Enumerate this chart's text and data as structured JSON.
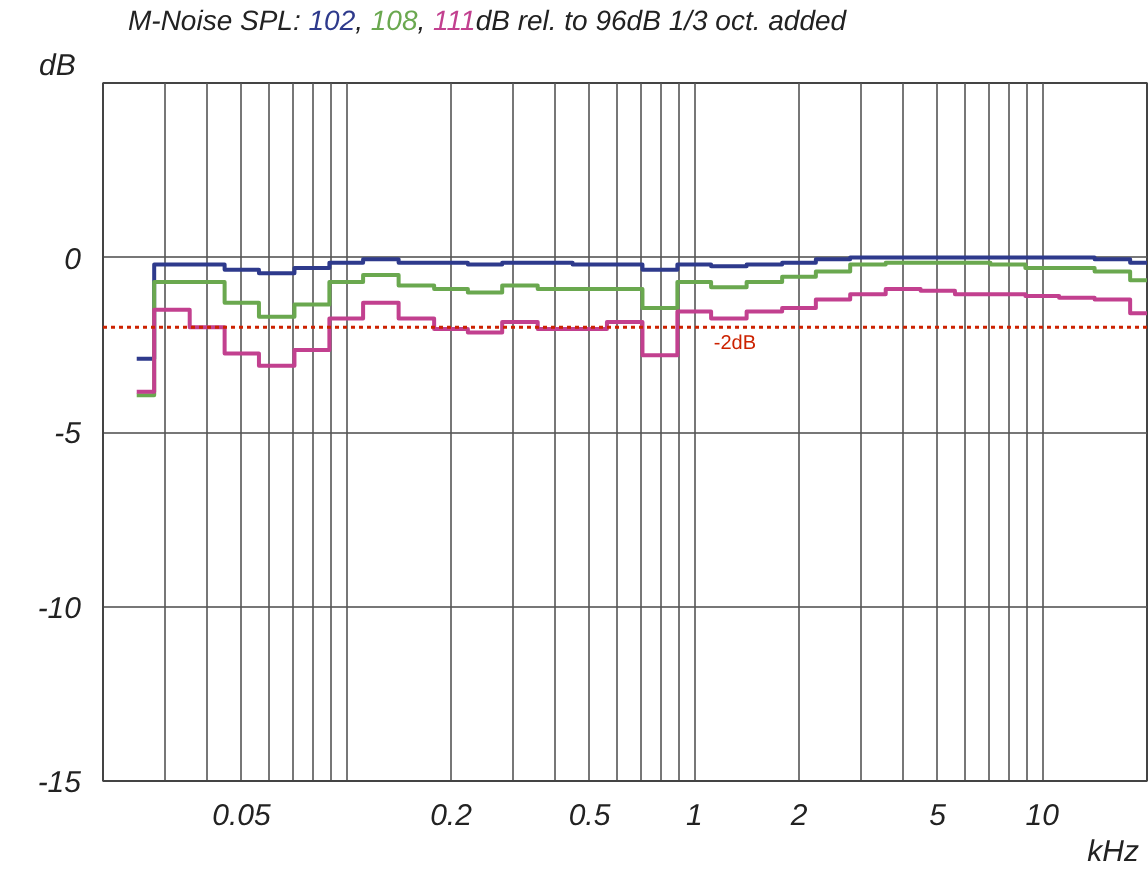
{
  "chart_data": {
    "type": "step",
    "title": "M-Noise SPL:",
    "annotations": [
      ", ",
      ", ",
      "dB rel. to 96dB 1/3 oct. added"
    ],
    "ylabel": "dB",
    "xlabel": "kHz",
    "log": "x",
    "xlim": [
      0.02,
      20
    ],
    "xticks": [
      {
        "value": 0.03,
        "label": null
      },
      {
        "value": 0.04,
        "label": null
      },
      0.05,
      {
        "value": 0.06,
        "label": null
      },
      {
        "value": 0.07,
        "label": null
      },
      {
        "value": 0.08,
        "label": null
      },
      {
        "value": 0.09,
        "label": null
      },
      {
        "value": 0.1,
        "label": null
      },
      0.2,
      {
        "value": 0.3,
        "label": null
      },
      {
        "value": 0.4,
        "label": null
      },
      0.5,
      {
        "value": 0.6,
        "label": null
      },
      {
        "value": 0.7,
        "label": null
      },
      {
        "value": 0.8,
        "label": null
      },
      {
        "value": 0.9,
        "label": null
      },
      1,
      2,
      {
        "value": 3,
        "label": null
      },
      {
        "value": 4,
        "label": null
      },
      5,
      {
        "value": 6,
        "label": null
      },
      {
        "value": 7,
        "label": null
      },
      {
        "value": 8,
        "label": null
      },
      {
        "value": 9,
        "label": null
      },
      10
    ],
    "ylim": [
      -15,
      5
    ],
    "yticks": [
      -15,
      -10,
      -5,
      0
    ],
    "grid": true,
    "x": [
      0.025,
      0.0315,
      0.04,
      0.05,
      0.063,
      0.08,
      0.1,
      0.125,
      0.16,
      0.2,
      0.25,
      0.315,
      0.4,
      0.5,
      0.63,
      0.8,
      1,
      1.25,
      1.6,
      2,
      2.5,
      3.15,
      4,
      5,
      6.3,
      8,
      10,
      12.5,
      16,
      20
    ],
    "series": [
      {
        "name": "102",
        "color": "#2e3a8c",
        "values": [
          -2.9,
          -0.2,
          -0.2,
          -0.35,
          -0.45,
          -0.3,
          -0.15,
          -0.05,
          -0.15,
          -0.15,
          -0.2,
          -0.15,
          -0.15,
          -0.2,
          -0.2,
          -0.35,
          -0.2,
          -0.25,
          -0.2,
          -0.15,
          -0.05,
          0,
          0,
          0,
          0,
          0,
          0,
          0,
          -0.05,
          -0.15
        ]
      },
      {
        "name": "108",
        "color": "#6aa84f",
        "values": [
          -3.95,
          -0.7,
          -0.7,
          -1.3,
          -1.7,
          -1.35,
          -0.7,
          -0.5,
          -0.8,
          -0.9,
          -1.0,
          -0.8,
          -0.9,
          -0.9,
          -0.9,
          -1.45,
          -0.7,
          -0.85,
          -0.7,
          -0.55,
          -0.4,
          -0.2,
          -0.15,
          -0.15,
          -0.15,
          -0.2,
          -0.3,
          -0.3,
          -0.4,
          -0.65
        ]
      },
      {
        "name": "111",
        "color": "#c2408f",
        "values": [
          -3.85,
          -1.5,
          -2.0,
          -2.75,
          -3.1,
          -2.65,
          -1.75,
          -1.3,
          -1.75,
          -2.05,
          -2.15,
          -1.85,
          -2.05,
          -2.05,
          -1.85,
          -2.8,
          -1.55,
          -1.75,
          -1.55,
          -1.45,
          -1.2,
          -1.05,
          -0.9,
          -0.95,
          -1.05,
          -1.05,
          -1.1,
          -1.15,
          -1.2,
          -1.6
        ]
      }
    ],
    "ref_lines": [
      {
        "axis": "y",
        "value": -2,
        "label": "-2dB",
        "color": "#cc2200",
        "line_style": "dotted"
      }
    ]
  }
}
